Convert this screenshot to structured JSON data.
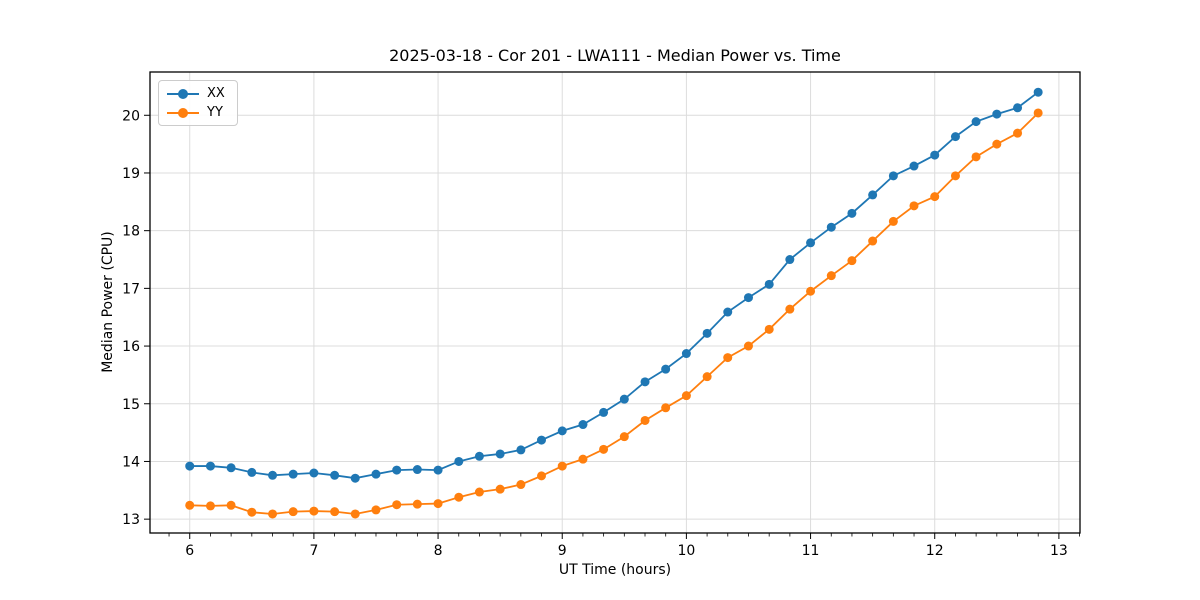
{
  "chart_data": {
    "type": "line",
    "title": "2025-03-18 - Cor 201 - LWA111 - Median Power vs. Time",
    "xlabel": "UT Time (hours)",
    "ylabel": "Median Power (CPU)",
    "xlim": [
      5.68,
      13.17
    ],
    "ylim": [
      12.76,
      20.75
    ],
    "xticks": [
      6,
      7,
      8,
      9,
      10,
      11,
      12,
      13
    ],
    "yticks": [
      13,
      14,
      15,
      16,
      17,
      18,
      19,
      20
    ],
    "x_minor_step": 0.166667,
    "grid": true,
    "legend_position": "upper-left",
    "x": [
      6.0,
      6.167,
      6.333,
      6.5,
      6.667,
      6.833,
      7.0,
      7.167,
      7.333,
      7.5,
      7.667,
      7.833,
      8.0,
      8.167,
      8.333,
      8.5,
      8.667,
      8.833,
      9.0,
      9.167,
      9.333,
      9.5,
      9.667,
      9.833,
      10.0,
      10.167,
      10.333,
      10.5,
      10.667,
      10.833,
      11.0,
      11.167,
      11.333,
      11.5,
      11.667,
      11.833,
      12.0,
      12.167,
      12.333,
      12.5,
      12.667,
      12.833
    ],
    "series": [
      {
        "name": "XX",
        "color": "#1f77b4",
        "values": [
          13.92,
          13.92,
          13.89,
          13.81,
          13.76,
          13.78,
          13.8,
          13.76,
          13.71,
          13.78,
          13.85,
          13.86,
          13.85,
          14.0,
          14.09,
          14.13,
          14.2,
          14.37,
          14.53,
          14.64,
          14.85,
          15.08,
          15.38,
          15.6,
          15.87,
          16.22,
          16.59,
          16.84,
          17.07,
          17.5,
          17.79,
          18.06,
          18.3,
          18.62,
          18.95,
          19.12,
          19.31,
          19.63,
          19.89,
          20.02,
          20.13,
          20.4
        ]
      },
      {
        "name": "YY",
        "color": "#ff7f0e",
        "values": [
          13.24,
          13.23,
          13.24,
          13.12,
          13.09,
          13.13,
          13.14,
          13.13,
          13.09,
          13.16,
          13.25,
          13.26,
          13.27,
          13.38,
          13.47,
          13.52,
          13.6,
          13.75,
          13.92,
          14.04,
          14.21,
          14.43,
          14.71,
          14.93,
          15.14,
          15.47,
          15.8,
          16.0,
          16.29,
          16.64,
          16.95,
          17.22,
          17.48,
          17.82,
          18.16,
          18.43,
          18.59,
          18.95,
          19.28,
          19.5,
          19.69,
          20.04
        ]
      }
    ]
  },
  "style": {
    "grid_color": "#dcdcdc",
    "spine_color": "#000000",
    "tick_color": "#000000",
    "background": "#ffffff",
    "marker_radius": 4.5,
    "line_width": 1.8
  }
}
